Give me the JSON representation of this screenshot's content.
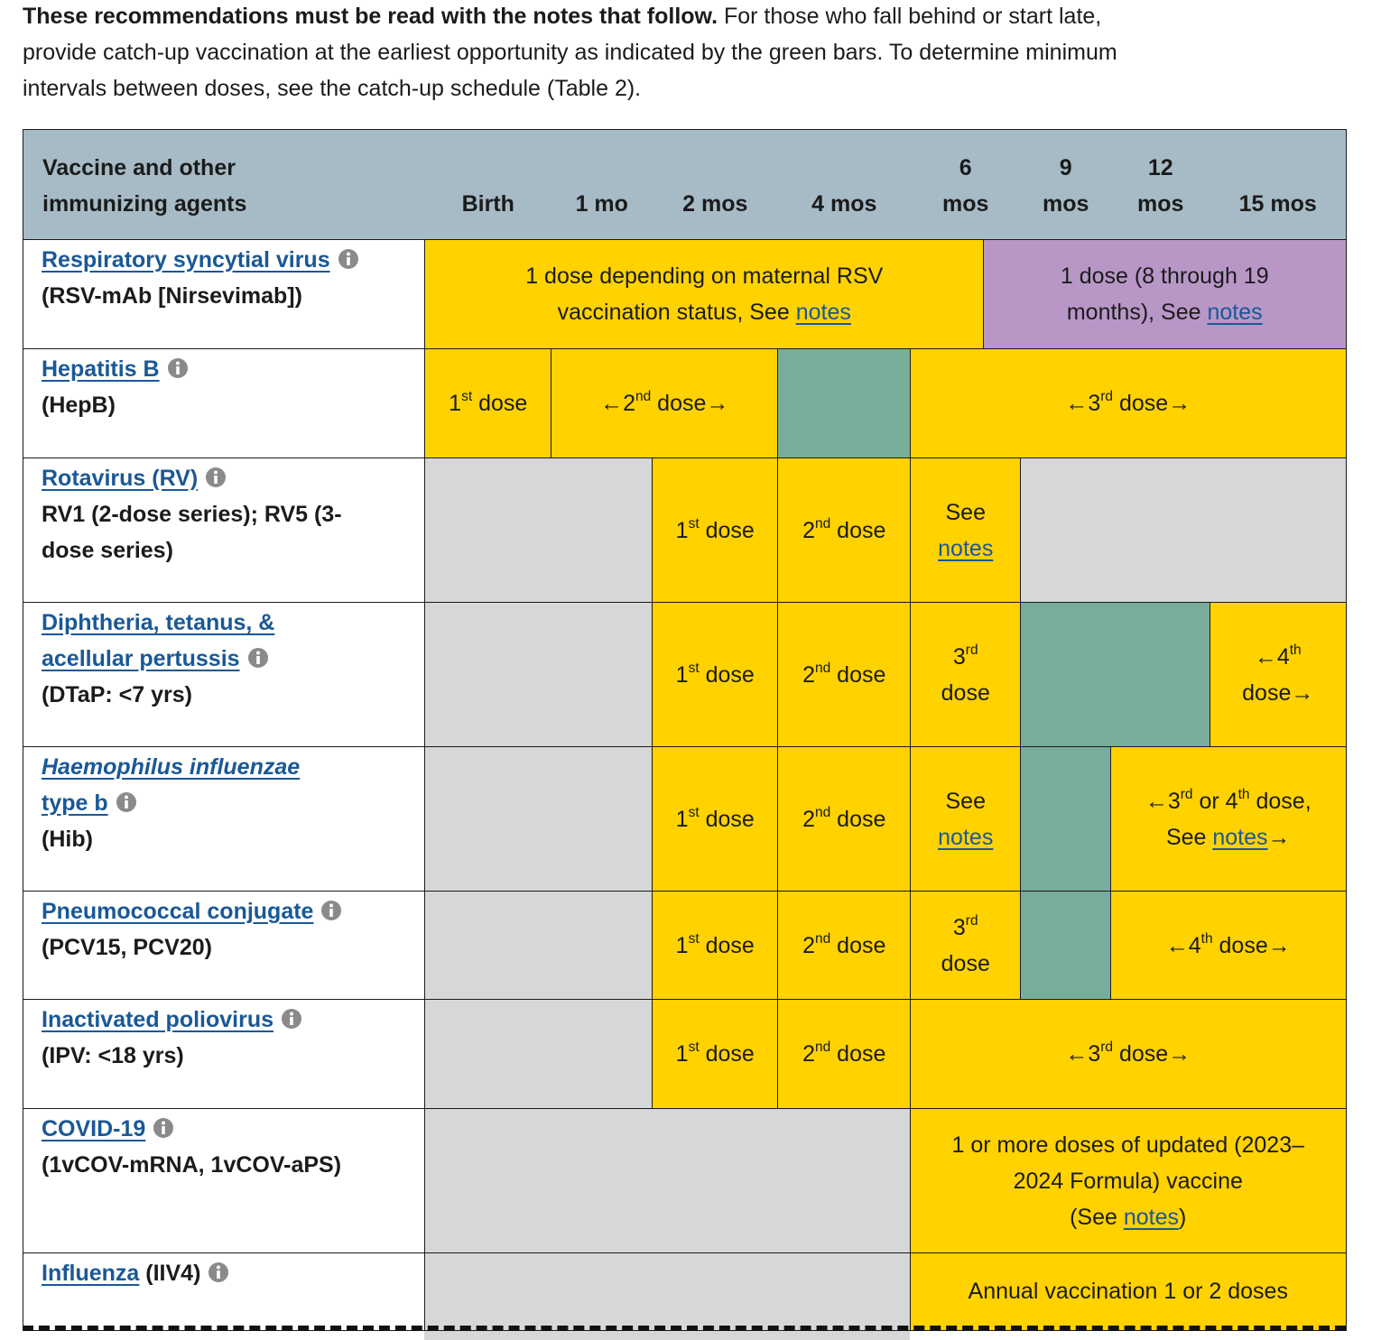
{
  "intro": {
    "lines": [
      [
        {
          "b": "These recommendations must be read with the notes that follow."
        },
        " For those who fall behind or start late,"
      ],
      [
        "provide catch-up vaccination at the earliest opportunity as indicated by the green bars. To determine minimum"
      ],
      [
        "intervals between doses, see the catch-up schedule (Table 2)."
      ]
    ]
  },
  "table": {
    "header": {
      "vaccine": {
        "lines": [
          [
            "Vaccine and other"
          ],
          [
            "immunizing agents"
          ]
        ]
      },
      "ages": [
        {
          "lines": [
            [
              "Birth"
            ]
          ]
        },
        {
          "lines": [
            [
              "1 mo"
            ]
          ]
        },
        {
          "lines": [
            [
              "2 mos"
            ]
          ]
        },
        {
          "lines": [
            [
              "4 mos"
            ]
          ]
        },
        {
          "lines": [
            [
              "6"
            ],
            [
              "mos"
            ]
          ]
        },
        {
          "lines": [
            [
              "9"
            ],
            [
              "mos"
            ]
          ]
        },
        {
          "lines": [
            [
              "12"
            ],
            [
              "mos"
            ]
          ]
        },
        {
          "lines": [
            [
              "15 mos"
            ]
          ]
        }
      ]
    },
    "rows": [
      {
        "vaccine": {
          "lines": [
            [
              {
                "link": "Respiratory syncytial virus"
              },
              {
                "info": true
              }
            ],
            [
              "(RSV-mAb [Nirsevimab])"
            ]
          ]
        },
        "cells": [
          {
            "color": "#ffd200",
            "lines": [
              [
                "1 dose depending on maternal RSV"
              ],
              [
                "vaccination status, See ",
                {
                  "link": "notes"
                }
              ]
            ]
          },
          {
            "color": "#b897c7",
            "lines": [
              [
                "1 dose (8 through 19"
              ],
              [
                "months), See ",
                {
                  "link": "notes"
                }
              ]
            ]
          }
        ]
      },
      {
        "vaccine": {
          "lines": [
            [
              {
                "link": "Hepatitis B"
              },
              {
                "info": true
              }
            ],
            [
              "(HepB)"
            ]
          ]
        },
        "cells": [
          {
            "color": "#ffd200",
            "lines": [
              [
                "1",
                {
                  "sup": "st"
                },
                " dose"
              ]
            ]
          },
          {
            "color": "#ffd200",
            "lines": [
              [
                "←2",
                {
                  "sup": "nd"
                },
                " dose→"
              ]
            ]
          },
          {
            "color": "#78ad9b"
          },
          {
            "color": "#ffd200",
            "lines": [
              [
                "←3",
                {
                  "sup": "rd"
                },
                " dose→"
              ]
            ]
          }
        ]
      },
      {
        "vaccine": {
          "lines": [
            [
              {
                "link": "Rotavirus (RV)"
              },
              {
                "info": true
              }
            ],
            [
              "RV1 (2-dose series); RV5 (3-"
            ],
            [
              "dose series)"
            ]
          ]
        },
        "cells": [
          {
            "color": "#d6d7d9"
          },
          {
            "color": "#ffd200",
            "lines": [
              [
                "1",
                {
                  "sup": "st"
                },
                " dose"
              ]
            ]
          },
          {
            "color": "#ffd200",
            "lines": [
              [
                "2",
                {
                  "sup": "nd"
                },
                " dose"
              ]
            ]
          },
          {
            "color": "#ffd200",
            "lines": [
              [
                "See"
              ],
              [
                {
                  "link": "notes"
                }
              ]
            ]
          },
          {
            "color": "#d6d7d9"
          }
        ]
      },
      {
        "vaccine": {
          "lines": [
            [
              {
                "link": "Diphtheria, tetanus, &"
              }
            ],
            [
              {
                "link": "acellular pertussis"
              },
              {
                "info": true
              }
            ],
            [
              "(DTaP: <7 yrs)"
            ]
          ]
        },
        "cells": [
          {
            "color": "#d6d7d9"
          },
          {
            "color": "#ffd200",
            "lines": [
              [
                "1",
                {
                  "sup": "st"
                },
                " dose"
              ]
            ]
          },
          {
            "color": "#ffd200",
            "lines": [
              [
                "2",
                {
                  "sup": "nd"
                },
                " dose"
              ]
            ]
          },
          {
            "color": "#ffd200",
            "lines": [
              [
                "3",
                {
                  "sup": "rd"
                }
              ],
              [
                "dose"
              ]
            ]
          },
          {
            "color": "#78ad9b"
          },
          {
            "color": "#ffd200",
            "lines": [
              [
                "←4",
                {
                  "sup": "th"
                }
              ],
              [
                "dose→"
              ]
            ]
          }
        ]
      },
      {
        "vaccine": {
          "lines": [
            [
              {
                "link": "Haemophilus influenzae",
                "italic": true
              }
            ],
            [
              {
                "link": "type b"
              },
              {
                "info": true
              }
            ],
            [
              "(Hib)"
            ]
          ]
        },
        "cells": [
          {
            "color": "#d6d7d9"
          },
          {
            "color": "#ffd200",
            "lines": [
              [
                "1",
                {
                  "sup": "st"
                },
                " dose"
              ]
            ]
          },
          {
            "color": "#ffd200",
            "lines": [
              [
                "2",
                {
                  "sup": "nd"
                },
                " dose"
              ]
            ]
          },
          {
            "color": "#ffd200",
            "lines": [
              [
                "See"
              ],
              [
                {
                  "link": "notes"
                }
              ]
            ]
          },
          {
            "color": "#78ad9b"
          },
          {
            "color": "#ffd200",
            "lines": [
              [
                "←3",
                {
                  "sup": "rd"
                },
                " or 4",
                {
                  "sup": "th"
                },
                " dose,"
              ],
              [
                "See ",
                {
                  "link": "notes"
                },
                "→"
              ]
            ]
          }
        ]
      },
      {
        "vaccine": {
          "lines": [
            [
              {
                "link": "Pneumococcal conjugate"
              },
              {
                "info": true
              }
            ],
            [
              "(PCV15, PCV20)"
            ]
          ]
        },
        "cells": [
          {
            "color": "#d6d7d9"
          },
          {
            "color": "#ffd200",
            "lines": [
              [
                "1",
                {
                  "sup": "st"
                },
                " dose"
              ]
            ]
          },
          {
            "color": "#ffd200",
            "lines": [
              [
                "2",
                {
                  "sup": "nd"
                },
                " dose"
              ]
            ]
          },
          {
            "color": "#ffd200",
            "lines": [
              [
                "3",
                {
                  "sup": "rd"
                }
              ],
              [
                "dose"
              ]
            ]
          },
          {
            "color": "#78ad9b"
          },
          {
            "color": "#ffd200",
            "lines": [
              [
                "←4",
                {
                  "sup": "th"
                },
                " dose→"
              ]
            ]
          }
        ]
      },
      {
        "vaccine": {
          "lines": [
            [
              {
                "link": "Inactivated poliovirus"
              },
              {
                "info": true
              }
            ],
            [
              "(IPV: <18 yrs)"
            ]
          ]
        },
        "cells": [
          {
            "color": "#d6d7d9"
          },
          {
            "color": "#ffd200",
            "lines": [
              [
                "1",
                {
                  "sup": "st"
                },
                " dose"
              ]
            ]
          },
          {
            "color": "#ffd200",
            "lines": [
              [
                "2",
                {
                  "sup": "nd"
                },
                " dose"
              ]
            ]
          },
          {
            "color": "#ffd200",
            "lines": [
              [
                "←3",
                {
                  "sup": "rd"
                },
                " dose→"
              ]
            ]
          }
        ]
      },
      {
        "vaccine": {
          "lines": [
            [
              {
                "link": "COVID-19"
              },
              {
                "info": true
              }
            ],
            [
              "(1vCOV-mRNA, 1vCOV-aPS)"
            ]
          ]
        },
        "cells": [
          {
            "color": "#d6d7d9"
          },
          {
            "color": "#ffd200",
            "lines": [
              [
                "1 or more doses of updated (2023–"
              ],
              [
                "2024 Formula) vaccine"
              ],
              [
                "(See ",
                {
                  "link": "notes"
                },
                ")"
              ]
            ]
          }
        ]
      },
      {
        "vaccine": {
          "lines": [
            [
              {
                "link": "Influenza"
              },
              " (IIV4)",
              {
                "info": true
              }
            ]
          ]
        },
        "cells": [
          {
            "color": "#d6d7d9"
          },
          {
            "color": "#ffd200",
            "lines": [
              [
                "Annual vaccination 1 or 2 doses"
              ]
            ]
          }
        ]
      }
    ]
  }
}
